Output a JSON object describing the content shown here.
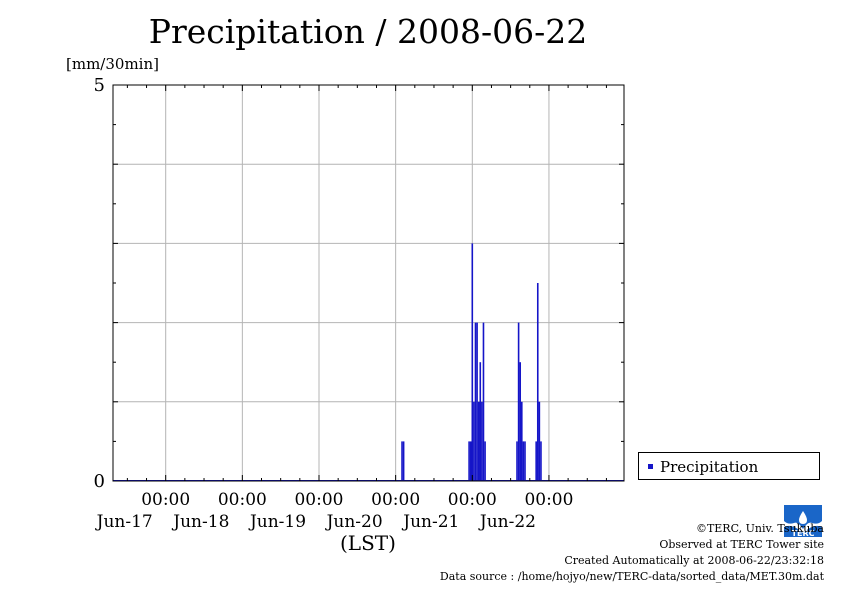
{
  "title": "Precipitation / 2008-06-22",
  "chart_data": {
    "type": "bar",
    "title": "Precipitation / 2008-06-22",
    "ylabel": "[mm/30min]",
    "xlabel": "(LST)",
    "ylim": [
      0,
      5
    ],
    "y_tick_labels": [
      "0",
      "5"
    ],
    "x_range_days": [
      "2008-06-16 07:30",
      "2008-06-22 23:30"
    ],
    "x_tick_labels": [
      {
        "date": "2008-06-17",
        "time": "00:00",
        "day": "Jun-17"
      },
      {
        "date": "2008-06-18",
        "time": "00:00",
        "day": "Jun-18"
      },
      {
        "date": "2008-06-19",
        "time": "00:00",
        "day": "Jun-19"
      },
      {
        "date": "2008-06-20",
        "time": "00:00",
        "day": "Jun-20"
      },
      {
        "date": "2008-06-21",
        "time": "00:00",
        "day": "Jun-21"
      },
      {
        "date": "2008-06-22",
        "time": "00:00",
        "day": "Jun-22"
      }
    ],
    "grid": true,
    "legend_position": "right",
    "series": [
      {
        "name": "Precipitation",
        "color": "#1515c8",
        "points": [
          {
            "t": "2008-06-20 02:00",
            "v": 0.5
          },
          {
            "t": "2008-06-20 02:30",
            "v": 0.5
          },
          {
            "t": "2008-06-20 23:00",
            "v": 0.5
          },
          {
            "t": "2008-06-20 23:30",
            "v": 0.5
          },
          {
            "t": "2008-06-21 00:00",
            "v": 3.0
          },
          {
            "t": "2008-06-21 00:30",
            "v": 1.0
          },
          {
            "t": "2008-06-21 01:00",
            "v": 2.0
          },
          {
            "t": "2008-06-21 01:30",
            "v": 2.0
          },
          {
            "t": "2008-06-21 02:00",
            "v": 1.0
          },
          {
            "t": "2008-06-21 02:30",
            "v": 1.5
          },
          {
            "t": "2008-06-21 03:00",
            "v": 1.0
          },
          {
            "t": "2008-06-21 03:30",
            "v": 2.0
          },
          {
            "t": "2008-06-21 04:00",
            "v": 0.5
          },
          {
            "t": "2008-06-21 14:00",
            "v": 0.5
          },
          {
            "t": "2008-06-21 14:30",
            "v": 2.0
          },
          {
            "t": "2008-06-21 15:00",
            "v": 1.5
          },
          {
            "t": "2008-06-21 15:30",
            "v": 1.0
          },
          {
            "t": "2008-06-21 16:00",
            "v": 0.5
          },
          {
            "t": "2008-06-21 16:30",
            "v": 0.5
          },
          {
            "t": "2008-06-21 20:00",
            "v": 0.5
          },
          {
            "t": "2008-06-21 20:30",
            "v": 2.5
          },
          {
            "t": "2008-06-21 21:00",
            "v": 1.0
          },
          {
            "t": "2008-06-21 21:30",
            "v": 0.5
          }
        ]
      }
    ]
  },
  "legend": {
    "label": "Precipitation",
    "color": "#1515c8"
  },
  "credits": {
    "line1": "©TERC, Univ. Tsukuba",
    "line2": "Observed at TERC Tower site",
    "line3": "Created Automatically at 2008-06-22/23:32:18",
    "line4": "Data source : /home/hojyo/new/TERC-data/sorted_data/MET.30m.dat"
  },
  "logo": {
    "text": "TERC",
    "color": "#1a66c8"
  }
}
